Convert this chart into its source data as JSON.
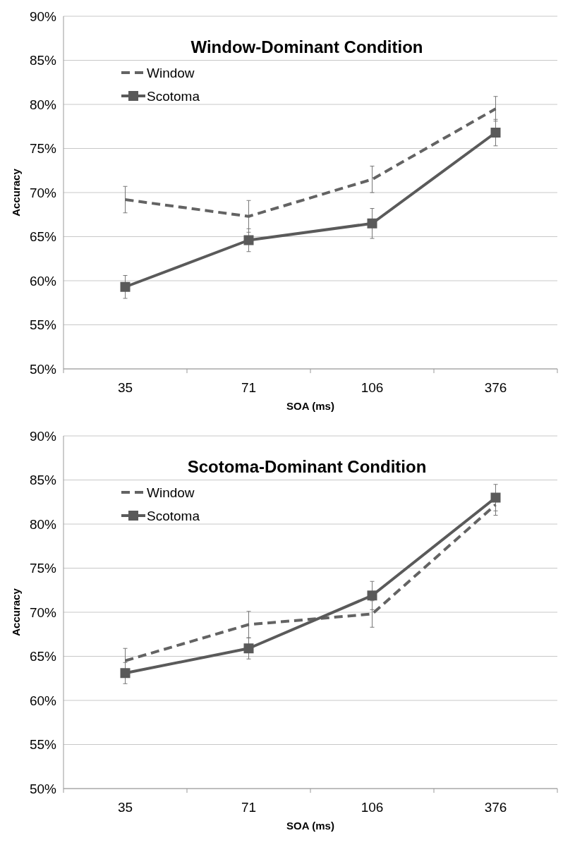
{
  "chart_data": [
    {
      "type": "line",
      "title": "Window-Dominant Condition",
      "xlabel": "SOA (ms)",
      "ylabel": "Accuracy",
      "categories": [
        "35",
        "71",
        "106",
        "376"
      ],
      "ylim": [
        50,
        90
      ],
      "yticks": [
        {
          "value": 50,
          "label": "50%"
        },
        {
          "value": 55,
          "label": "55%"
        },
        {
          "value": 60,
          "label": "60%"
        },
        {
          "value": 65,
          "label": "65%"
        },
        {
          "value": 70,
          "label": "70%"
        },
        {
          "value": 75,
          "label": "75%"
        },
        {
          "value": 80,
          "label": "80%"
        },
        {
          "value": 85,
          "label": "85%"
        },
        {
          "value": 90,
          "label": "90%"
        }
      ],
      "grid": "y",
      "legend": "top left",
      "series": [
        {
          "name": "Window",
          "color": "#636363",
          "values": [
            69.2,
            67.3,
            71.5,
            79.5
          ],
          "errors": [
            1.5,
            1.8,
            1.5,
            1.4
          ],
          "line_style": "dashed",
          "marker": "none"
        },
        {
          "name": "Scotoma",
          "color": "#5a5a5a",
          "values": [
            59.3,
            64.6,
            66.5,
            76.8
          ],
          "errors": [
            1.3,
            1.3,
            1.7,
            1.5
          ],
          "line_style": "solid",
          "marker": "square"
        }
      ]
    },
    {
      "type": "line",
      "title": "Scotoma-Dominant Condition",
      "xlabel": "SOA (ms)",
      "ylabel": "Accuracy",
      "categories": [
        "35",
        "71",
        "106",
        "376"
      ],
      "ylim": [
        50,
        90
      ],
      "yticks": [
        {
          "value": 50,
          "label": "50%"
        },
        {
          "value": 55,
          "label": "55%"
        },
        {
          "value": 60,
          "label": "60%"
        },
        {
          "value": 65,
          "label": "65%"
        },
        {
          "value": 70,
          "label": "70%"
        },
        {
          "value": 75,
          "label": "75%"
        },
        {
          "value": 80,
          "label": "80%"
        },
        {
          "value": 85,
          "label": "85%"
        },
        {
          "value": 90,
          "label": "90%"
        }
      ],
      "grid": "y",
      "legend": "top left",
      "series": [
        {
          "name": "Window",
          "color": "#636363",
          "values": [
            64.5,
            68.6,
            69.8,
            82.2
          ],
          "errors": [
            1.4,
            1.5,
            1.5,
            1.2
          ],
          "line_style": "dashed",
          "marker": "none"
        },
        {
          "name": "Scotoma",
          "color": "#5a5a5a",
          "values": [
            63.1,
            65.9,
            71.9,
            83.0
          ],
          "errors": [
            1.2,
            1.2,
            1.6,
            1.5
          ],
          "line_style": "solid",
          "marker": "square"
        }
      ]
    }
  ]
}
